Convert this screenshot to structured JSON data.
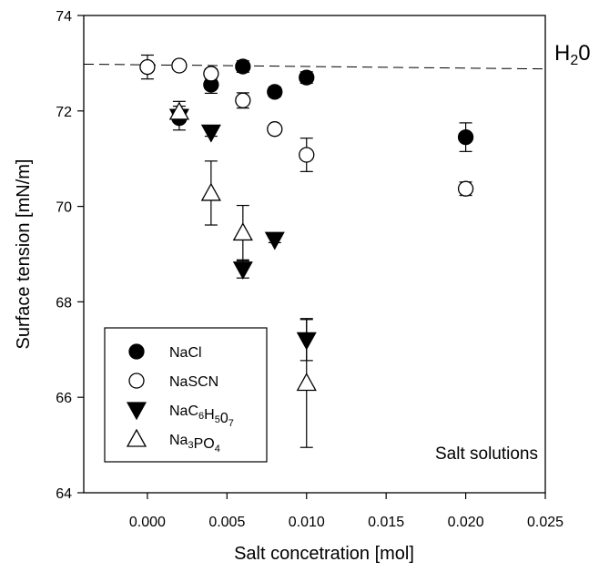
{
  "chart_data": {
    "type": "scatter",
    "xlabel": "Salt concetration [mol]",
    "ylabel": "Surface tension [mN/m]",
    "xlim": [
      -0.004,
      0.025
    ],
    "ylim": [
      64,
      74
    ],
    "xticks": [
      "0.000",
      "0.005",
      "0.010",
      "0.015",
      "0.020",
      "0.025"
    ],
    "xtick_values": [
      0,
      0.005,
      0.01,
      0.015,
      0.02,
      0.025
    ],
    "yticks": [
      "64",
      "66",
      "68",
      "70",
      "72",
      "74"
    ],
    "ytick_values": [
      64,
      66,
      68,
      70,
      72,
      74
    ],
    "grid": false,
    "legend_position": "bottom-left",
    "annotation": "Salt solutions",
    "reference_line": {
      "label_main": "H",
      "label_sub": "2",
      "label_tail": "0",
      "y_start": 72.98,
      "y_end": 72.88
    },
    "series": [
      {
        "name_parts": [
          {
            "t": "NaCl"
          }
        ],
        "marker": "circle-filled",
        "points": [
          {
            "x": 0.002,
            "y": 71.85,
            "err": 0.25
          },
          {
            "x": 0.004,
            "y": 72.55,
            "err": 0.18
          },
          {
            "x": 0.006,
            "y": 72.93,
            "err": 0.12
          },
          {
            "x": 0.008,
            "y": 72.4,
            "err": 0.1
          },
          {
            "x": 0.01,
            "y": 72.7,
            "err": 0.12
          },
          {
            "x": 0.02,
            "y": 71.45,
            "err": 0.3
          }
        ]
      },
      {
        "name_parts": [
          {
            "t": "NaSCN"
          }
        ],
        "marker": "circle-open",
        "points": [
          {
            "x": 0.0,
            "y": 72.92,
            "err": 0.25
          },
          {
            "x": 0.002,
            "y": 72.95,
            "err": 0.06
          },
          {
            "x": 0.004,
            "y": 72.78,
            "err": 0.1
          },
          {
            "x": 0.006,
            "y": 72.22,
            "err": 0.16
          },
          {
            "x": 0.008,
            "y": 71.62,
            "err": 0.06
          },
          {
            "x": 0.01,
            "y": 71.08,
            "err": 0.35
          },
          {
            "x": 0.02,
            "y": 70.37,
            "err": 0.14
          }
        ]
      },
      {
        "name_parts": [
          {
            "t": "NaC"
          },
          {
            "t": "6",
            "sub": true
          },
          {
            "t": "H"
          },
          {
            "t": "5",
            "sub": true
          },
          {
            "t": "0"
          },
          {
            "t": "7",
            "sub": true
          }
        ],
        "marker": "triangle-down-filled",
        "points": [
          {
            "x": 0.002,
            "y": 71.88,
            "err": 0.12
          },
          {
            "x": 0.004,
            "y": 71.55,
            "err": 0.08
          },
          {
            "x": 0.006,
            "y": 68.68,
            "err": 0.18
          },
          {
            "x": 0.008,
            "y": 69.3,
            "err": 0.06
          },
          {
            "x": 0.01,
            "y": 67.2,
            "err": 0.43
          }
        ]
      },
      {
        "name_parts": [
          {
            "t": "Na"
          },
          {
            "t": "3",
            "sub": true
          },
          {
            "t": "PO"
          },
          {
            "t": "4",
            "sub": true
          }
        ],
        "marker": "triangle-up-open",
        "points": [
          {
            "x": 0.002,
            "y": 71.98,
            "err": 0.22
          },
          {
            "x": 0.004,
            "y": 70.28,
            "err": 0.67
          },
          {
            "x": 0.006,
            "y": 69.45,
            "err": 0.57
          },
          {
            "x": 0.01,
            "y": 66.3,
            "err": 1.35
          }
        ]
      }
    ]
  }
}
